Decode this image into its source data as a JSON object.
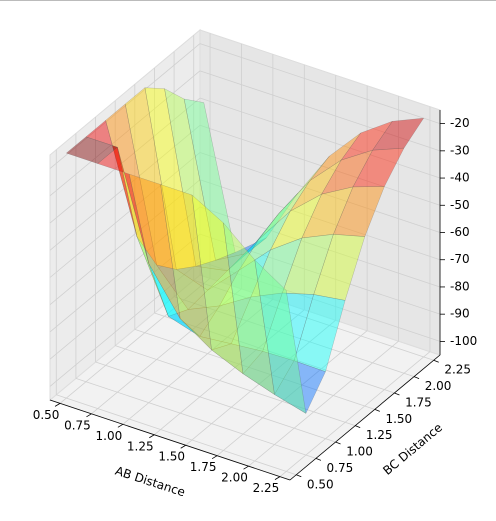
{
  "chart_data": {
    "type": "surface3d",
    "xlabel": "AB Distance",
    "ylabel": "BC Distance",
    "x": [
      0.5,
      0.75,
      1.0,
      1.25,
      1.5,
      1.75,
      2.0,
      2.25
    ],
    "y": [
      0.5,
      0.75,
      1.0,
      1.25,
      1.5,
      1.75,
      2.0,
      2.25
    ],
    "z": [
      [
        -15,
        -15,
        -15,
        -15,
        -15,
        -21.4,
        -31.2,
        -38.5
      ],
      [
        -15,
        -15,
        -53.9,
        -70.3,
        -77.9,
        -82.8,
        -86.6,
        -89.7
      ],
      [
        -15,
        -53.9,
        -79.3,
        -82.8,
        -81.7,
        -80.6,
        -80.2,
        -80.4
      ],
      [
        -15,
        -70.3,
        -82.8,
        -77.6,
        -70.5,
        -65.2,
        -61.9,
        -60.2
      ],
      [
        -15,
        -77.9,
        -81.7,
        -70.5,
        -59.2,
        -51.0,
        -45.8,
        -42.8
      ],
      [
        -21.4,
        -82.8,
        -80.6,
        -65.2,
        -51.0,
        -40.9,
        -34.4,
        -30.4
      ],
      [
        -31.2,
        -86.6,
        -80.2,
        -61.9,
        -45.8,
        -34.4,
        -26.9,
        -22.3
      ],
      [
        -38.5,
        -89.7,
        -80.4,
        -60.2,
        -42.8,
        -30.4,
        -22.3,
        -17.3
      ]
    ],
    "colormap": "jet",
    "alpha": 0.45,
    "xlim": [
      0.42,
      2.33
    ],
    "ylim": [
      0.42,
      2.33
    ],
    "zlim": [
      -105,
      -15
    ],
    "xticks": [
      {
        "value": 0.5,
        "label": "0.50"
      },
      0.75,
      {
        "value": 1.0,
        "label": "1.00"
      },
      1.25,
      {
        "value": 1.5,
        "label": "1.50"
      },
      1.75,
      {
        "value": 2.0,
        "label": "2.00"
      },
      2.25
    ],
    "yticks": [
      {
        "value": 0.5,
        "label": "0.50"
      },
      0.75,
      {
        "value": 1.0,
        "label": "1.00"
      },
      1.25,
      {
        "value": 1.5,
        "label": "1.50"
      },
      1.75,
      {
        "value": 2.0,
        "label": "2.00"
      },
      2.25
    ],
    "zticks": [
      -100,
      -90,
      -80,
      -70,
      -60,
      -50,
      -40,
      -30,
      -20
    ],
    "grid": true
  }
}
